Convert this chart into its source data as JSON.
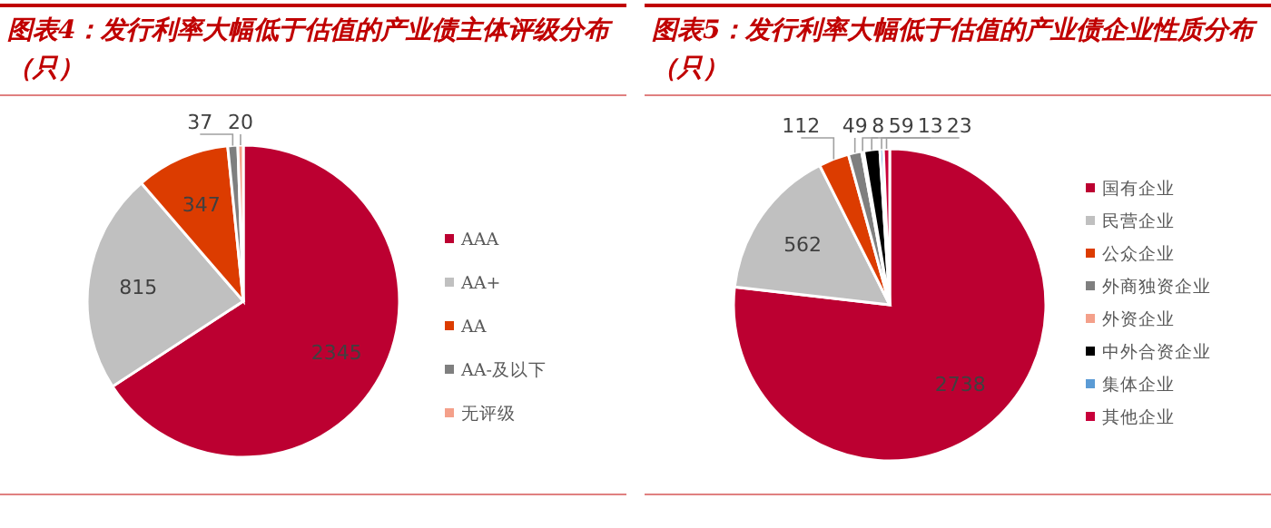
{
  "chart_data": [
    {
      "type": "pie",
      "title": "图表4：发行利率大幅低于估值的产业债主体评级分布（只）",
      "categories": [
        "AAA",
        "AA+",
        "AA",
        "AA-及以下",
        "无评级"
      ],
      "values": [
        2345,
        815,
        347,
        37,
        20
      ],
      "colors": [
        "#bc0031",
        "#c0c0c0",
        "#dc3c00",
        "#7f7f7f",
        "#f4a08a"
      ],
      "data_labels": true,
      "legend": "right"
    },
    {
      "type": "pie",
      "title": "图表5：发行利率大幅低于估值的产业债企业性质分布（只）",
      "categories": [
        "国有企业",
        "民营企业",
        "公众企业",
        "外商独资企业",
        "外资企业",
        "中外合资企业",
        "集体企业",
        "其他企业"
      ],
      "values": [
        2738,
        562,
        112,
        49,
        8,
        59,
        13,
        23
      ],
      "colors": [
        "#bc0031",
        "#c0c0c0",
        "#dc3c00",
        "#7f7f7f",
        "#f4a08a",
        "#000000",
        "#5b9bd5",
        "#c8003a"
      ],
      "data_labels": true,
      "legend": "right"
    }
  ]
}
